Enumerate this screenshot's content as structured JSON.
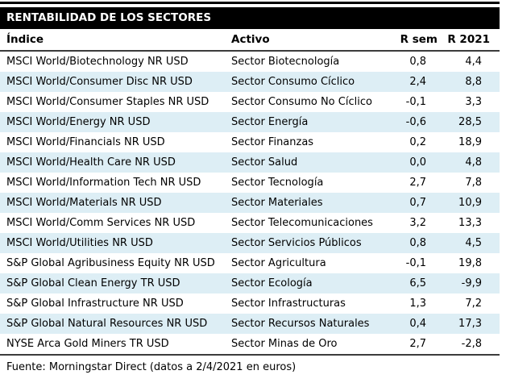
{
  "title": "RENTABILIDAD DE LOS SECTORES",
  "columns": {
    "indice": "Índice",
    "activo": "Activo",
    "r_sem": "R sem",
    "r_2021": "R 2021"
  },
  "rows": [
    {
      "indice": "MSCI World/Biotechnology NR USD",
      "activo": "Sector Biotecnología",
      "r_sem": "0,8",
      "r_2021": "4,4"
    },
    {
      "indice": "MSCI World/Consumer Disc NR USD",
      "activo": "Sector Consumo Cíclico",
      "r_sem": "2,4",
      "r_2021": "8,8"
    },
    {
      "indice": "MSCI World/Consumer Staples NR USD",
      "activo": "Sector Consumo No Cíclico",
      "r_sem": "-0,1",
      "r_2021": "3,3"
    },
    {
      "indice": "MSCI World/Energy NR USD",
      "activo": "Sector Energía",
      "r_sem": "-0,6",
      "r_2021": "28,5"
    },
    {
      "indice": "MSCI World/Financials NR USD",
      "activo": "Sector Finanzas",
      "r_sem": "0,2",
      "r_2021": "18,9"
    },
    {
      "indice": "MSCI World/Health Care NR USD",
      "activo": "Sector Salud",
      "r_sem": "0,0",
      "r_2021": "4,8"
    },
    {
      "indice": "MSCI World/Information Tech NR USD",
      "activo": "Sector Tecnología",
      "r_sem": "2,7",
      "r_2021": "7,8"
    },
    {
      "indice": "MSCI World/Materials NR USD",
      "activo": "Sector Materiales",
      "r_sem": "0,7",
      "r_2021": "10,9"
    },
    {
      "indice": "MSCI World/Comm Services NR USD",
      "activo": "Sector Telecomunicaciones",
      "r_sem": "3,2",
      "r_2021": "13,3"
    },
    {
      "indice": "MSCI World/Utilities NR USD",
      "activo": "Sector Servicios Públicos",
      "r_sem": "0,8",
      "r_2021": "4,5"
    },
    {
      "indice": "S&P Global Agribusiness Equity NR USD",
      "activo": "Sector Agricultura",
      "r_sem": "-0,1",
      "r_2021": "19,8"
    },
    {
      "indice": "S&P Global Clean Energy TR USD",
      "activo": "Sector Ecología",
      "r_sem": "6,5",
      "r_2021": "-9,9"
    },
    {
      "indice": "S&P Global Infrastructure NR USD",
      "activo": "Sector Infrastructuras",
      "r_sem": "1,3",
      "r_2021": "7,2"
    },
    {
      "indice": "S&P Global Natural Resources NR USD",
      "activo": "Sector Recursos Naturales",
      "r_sem": "0,4",
      "r_2021": "17,3"
    },
    {
      "indice": "NYSE Arca Gold Miners TR USD",
      "activo": "Sector Minas de Oro",
      "r_sem": "2,7",
      "r_2021": "-2,8"
    }
  ],
  "footer": "Fuente: Morningstar Direct (datos a 2/4/2021 en euros)",
  "colors": {
    "band_background": "#000000",
    "band_text": "#ffffff",
    "alt_row_background": "#ddeef5",
    "rule": "#3c3c3c",
    "text": "#000000"
  }
}
